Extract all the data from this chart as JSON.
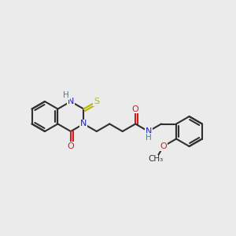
{
  "background_color": "#ebebeb",
  "bond_color": "#303030",
  "N_color": "#2020cc",
  "O_color": "#cc2020",
  "S_color": "#b8b800",
  "H_color": "#4a8080",
  "lw": 1.5,
  "fsize": 8.0
}
